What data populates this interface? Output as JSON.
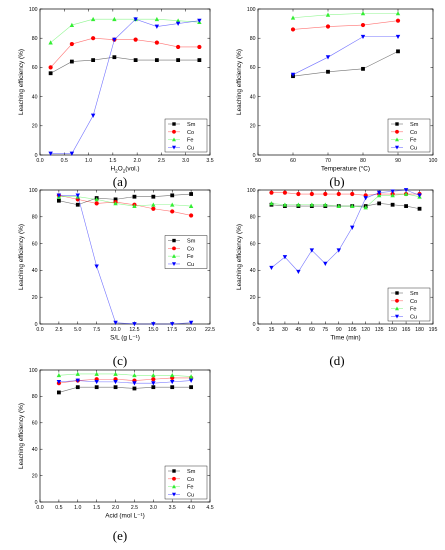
{
  "series_styles": [
    {
      "name": "Sm",
      "color": "#000000",
      "marker": "square"
    },
    {
      "name": "Co",
      "color": "#ff0000",
      "marker": "circle"
    },
    {
      "name": "Fe",
      "color": "#33ee33",
      "marker": "triangle-up"
    },
    {
      "name": "Cu",
      "color": "#0000ff",
      "marker": "triangle-down"
    }
  ],
  "chart_data": [
    {
      "id": "a",
      "type": "line",
      "panel_label": "(a)",
      "xlabel": "H2O2(vol.)",
      "xlabel_main": "H",
      "xlabel_sub1": "2",
      "xlabel_mid": "O",
      "xlabel_sub2": "2",
      "xlabel_tail": "(vol.)",
      "ylabel": "Leaching efficiency (%)",
      "xlim": [
        -0.25,
        3.75
      ],
      "ylim": [
        0,
        100
      ],
      "xticks": [
        "0.0",
        "0.5",
        "1.0",
        "1.5",
        "2.0",
        "2.5",
        "3.0",
        "3.5"
      ],
      "yticks": [
        "0",
        "20",
        "40",
        "60",
        "80",
        "100"
      ],
      "legend_position": "bottom-right",
      "x": [
        0,
        0.5,
        1,
        1.5,
        2,
        2.5,
        3,
        3.5
      ],
      "series": [
        {
          "name": "Sm",
          "values": [
            56,
            64,
            65,
            67,
            65,
            65,
            65,
            65
          ]
        },
        {
          "name": "Co",
          "values": [
            60,
            76,
            80,
            79,
            79,
            77,
            74,
            74
          ]
        },
        {
          "name": "Fe",
          "values": [
            77,
            89,
            93,
            93,
            93,
            93,
            92,
            91
          ]
        },
        {
          "name": "Cu",
          "values": [
            1,
            1,
            27,
            79,
            93,
            88,
            90,
            92
          ]
        }
      ]
    },
    {
      "id": "b",
      "type": "line",
      "panel_label": "(b)",
      "xlabel": "Temperature (°C)",
      "ylabel": "Leaching efficiency (%)",
      "xlim": [
        50,
        100
      ],
      "ylim": [
        0,
        100
      ],
      "xticks": [
        "50",
        "60",
        "70",
        "80",
        "90",
        "100"
      ],
      "yticks": [
        "0",
        "20",
        "40",
        "60",
        "80",
        "100"
      ],
      "legend_position": "bottom-right",
      "x": [
        60,
        70,
        80,
        90
      ],
      "series": [
        {
          "name": "Sm",
          "values": [
            54,
            57,
            59,
            71
          ]
        },
        {
          "name": "Co",
          "values": [
            86,
            88,
            89,
            92
          ]
        },
        {
          "name": "Fe",
          "values": [
            94,
            96,
            97,
            97
          ]
        },
        {
          "name": "Cu",
          "values": [
            55,
            67,
            81,
            81
          ]
        }
      ]
    },
    {
      "id": "c",
      "type": "line",
      "panel_label": "(c)",
      "xlabel": "S/L (g L⁻¹)",
      "ylabel": "Leaching efficiency (%)",
      "xlim": [
        0,
        22.5
      ],
      "ylim": [
        0,
        100
      ],
      "xticks": [
        "0.0",
        "2.5",
        "5.0",
        "7.5",
        "10.0",
        "12.5",
        "15.0",
        "17.5",
        "20.0",
        "22.5"
      ],
      "yticks": [
        "0",
        "20",
        "40",
        "60",
        "80",
        "100"
      ],
      "legend_position": "right",
      "x": [
        2.5,
        5,
        7.5,
        10,
        12.5,
        15,
        17.5,
        20
      ],
      "series": [
        {
          "name": "Sm",
          "values": [
            92,
            89,
            94,
            93,
            95,
            95,
            96,
            97
          ]
        },
        {
          "name": "Co",
          "values": [
            96,
            93,
            90,
            91,
            89,
            86,
            84,
            81
          ]
        },
        {
          "name": "Fe",
          "values": [
            95,
            95,
            93,
            90,
            88,
            89,
            89,
            88
          ]
        },
        {
          "name": "Cu",
          "values": [
            96,
            96,
            43,
            1,
            0,
            0,
            0,
            1
          ]
        }
      ]
    },
    {
      "id": "d",
      "type": "line",
      "panel_label": "(d)",
      "xlabel": "Time (min)",
      "ylabel": "Leaching efficiency (%)",
      "xlim": [
        0,
        195
      ],
      "ylim": [
        0,
        100
      ],
      "xticks": [
        "0",
        "15",
        "30",
        "45",
        "60",
        "75",
        "90",
        "105",
        "120",
        "135",
        "150",
        "165",
        "180",
        "195"
      ],
      "yticks": [
        "0",
        "20",
        "40",
        "60",
        "80",
        "100"
      ],
      "legend_position": "bottom-right",
      "x": [
        15,
        30,
        45,
        60,
        75,
        90,
        105,
        120,
        135,
        150,
        165,
        180
      ],
      "series": [
        {
          "name": "Sm",
          "values": [
            89,
            88,
            88,
            88,
            88,
            88,
            88,
            88,
            90,
            89,
            88,
            86
          ]
        },
        {
          "name": "Co",
          "values": [
            98,
            98,
            97,
            97,
            97,
            97,
            97,
            96,
            97,
            97,
            97,
            97
          ]
        },
        {
          "name": "Fe",
          "values": [
            90,
            89,
            89,
            89,
            89,
            88,
            88,
            87,
            96,
            96,
            97,
            95
          ]
        },
        {
          "name": "Cu",
          "values": [
            42,
            50,
            39,
            55,
            45,
            55,
            72,
            94,
            98,
            99,
            100,
            96
          ]
        }
      ]
    },
    {
      "id": "e",
      "type": "line",
      "panel_label": "(e)",
      "xlabel": "Acid (mol L⁻¹)",
      "ylabel": "Leaching efficiency (%)",
      "xlim": [
        0,
        4.5
      ],
      "ylim": [
        0,
        100
      ],
      "xticks": [
        "0.0",
        "0.5",
        "1.0",
        "1.5",
        "2.0",
        "2.5",
        "3.0",
        "3.5",
        "4.0",
        "4.5"
      ],
      "yticks": [
        "0",
        "20",
        "40",
        "60",
        "80",
        "100"
      ],
      "legend_position": "bottom-right",
      "x": [
        0.5,
        1,
        1.5,
        2,
        2.5,
        3,
        3.5,
        4
      ],
      "series": [
        {
          "name": "Sm",
          "values": [
            83,
            87,
            87,
            87,
            86,
            87,
            87,
            87
          ]
        },
        {
          "name": "Co",
          "values": [
            90,
            92,
            93,
            93,
            92,
            93,
            94,
            94
          ]
        },
        {
          "name": "Fe",
          "values": [
            96,
            97,
            97,
            97,
            96,
            96,
            96,
            95
          ]
        },
        {
          "name": "Cu",
          "values": [
            91,
            92,
            91,
            91,
            90,
            90,
            91,
            92
          ]
        }
      ]
    }
  ]
}
